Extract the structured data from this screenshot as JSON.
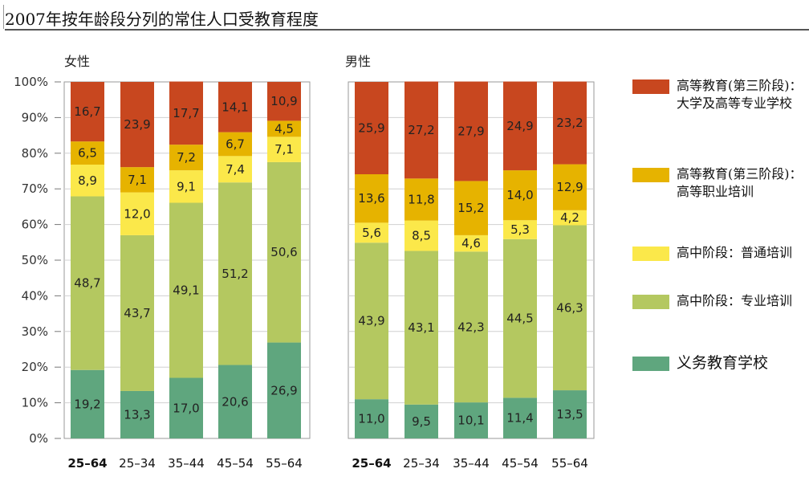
{
  "header": {
    "title": "2007年按年龄段分列的常住人口受教育程度"
  },
  "legend": [
    {
      "key": "tertiary_university",
      "label": "高等教育(第三阶段)：大学及高等专业学校",
      "color": "#C8471F"
    },
    {
      "key": "tertiary_vocational",
      "label": "高等教育(第三阶段)：高等职业培训",
      "color": "#E6B300"
    },
    {
      "key": "upper_general",
      "label": "高中阶段：普通培训",
      "color": "#FBE84A"
    },
    {
      "key": "upper_vocational",
      "label": "高中阶段：专业培训",
      "color": "#B4C860"
    },
    {
      "key": "compulsory",
      "label": "义务教育学校",
      "color": "#5FA67E"
    }
  ],
  "chart_data": [
    {
      "type": "bar",
      "stacked": true,
      "title": "女性",
      "ylim": [
        0,
        100
      ],
      "yticks": [
        "0%",
        "10%",
        "20%",
        "30%",
        "40%",
        "50%",
        "60%",
        "70%",
        "80%",
        "90%",
        "100%"
      ],
      "categories": [
        "25–64",
        "25–34",
        "35–44",
        "45–54",
        "55–64"
      ],
      "emphasized_category": "25–64",
      "grid": true,
      "series": [
        {
          "name": "义务教育学校",
          "labels": [
            "19,2",
            "13,3",
            "17,0",
            "20,6",
            "26,9"
          ],
          "values": [
            19.2,
            13.3,
            17.0,
            20.6,
            26.9
          ]
        },
        {
          "name": "高中阶段：专业培训",
          "labels": [
            "48,7",
            "43,7",
            "49,1",
            "51,2",
            "50,6"
          ],
          "values": [
            48.7,
            43.7,
            49.1,
            51.2,
            50.6
          ]
        },
        {
          "name": "高中阶段：普通培训",
          "labels": [
            "8,9",
            "12,0",
            "9,1",
            "7,4",
            "7,1"
          ],
          "values": [
            8.9,
            12.0,
            9.1,
            7.4,
            7.1
          ]
        },
        {
          "name": "高等教育(第三阶段)：高等职业培训",
          "labels": [
            "6,5",
            "7,1",
            "7,2",
            "6,7",
            "4,5"
          ],
          "values": [
            6.5,
            7.1,
            7.2,
            6.7,
            4.5
          ]
        },
        {
          "name": "高等教育(第三阶段)：大学及高等专业学校",
          "labels": [
            "16,7",
            "23,9",
            "17,7",
            "14,1",
            "10,9"
          ],
          "values": [
            16.7,
            23.9,
            17.7,
            14.1,
            10.9
          ]
        }
      ]
    },
    {
      "type": "bar",
      "stacked": true,
      "title": "男性",
      "ylim": [
        0,
        100
      ],
      "categories": [
        "25–64",
        "25–34",
        "35–44",
        "45–54",
        "55–64"
      ],
      "emphasized_category": "25–64",
      "grid": true,
      "series": [
        {
          "name": "义务教育学校",
          "labels": [
            "11,0",
            "9,5",
            "10,1",
            "11,4",
            "13,5"
          ],
          "values": [
            11.0,
            9.5,
            10.1,
            11.4,
            13.5
          ]
        },
        {
          "name": "高中阶段：专业培训",
          "labels": [
            "43,9",
            "43,1",
            "42,3",
            "44,5",
            "46,3"
          ],
          "values": [
            43.9,
            43.1,
            42.3,
            44.5,
            46.3
          ]
        },
        {
          "name": "高中阶段：普通培训",
          "labels": [
            "5,6",
            "8,5",
            "4,6",
            "5,3",
            "4,2"
          ],
          "values": [
            5.6,
            8.5,
            4.6,
            5.3,
            4.2
          ]
        },
        {
          "name": "高等教育(第三阶段)：高等职业培训",
          "labels": [
            "13,6",
            "11,8",
            "15,2",
            "14,0",
            "12,9"
          ],
          "values": [
            13.6,
            11.8,
            15.2,
            14.0,
            12.9
          ]
        },
        {
          "name": "高等教育(第三阶段)：大学及高等专业学校",
          "labels": [
            "25,9",
            "27,2",
            "27,9",
            "24,9",
            "23,2"
          ],
          "values": [
            25.9,
            27.2,
            27.9,
            24.9,
            23.2
          ]
        }
      ]
    }
  ]
}
